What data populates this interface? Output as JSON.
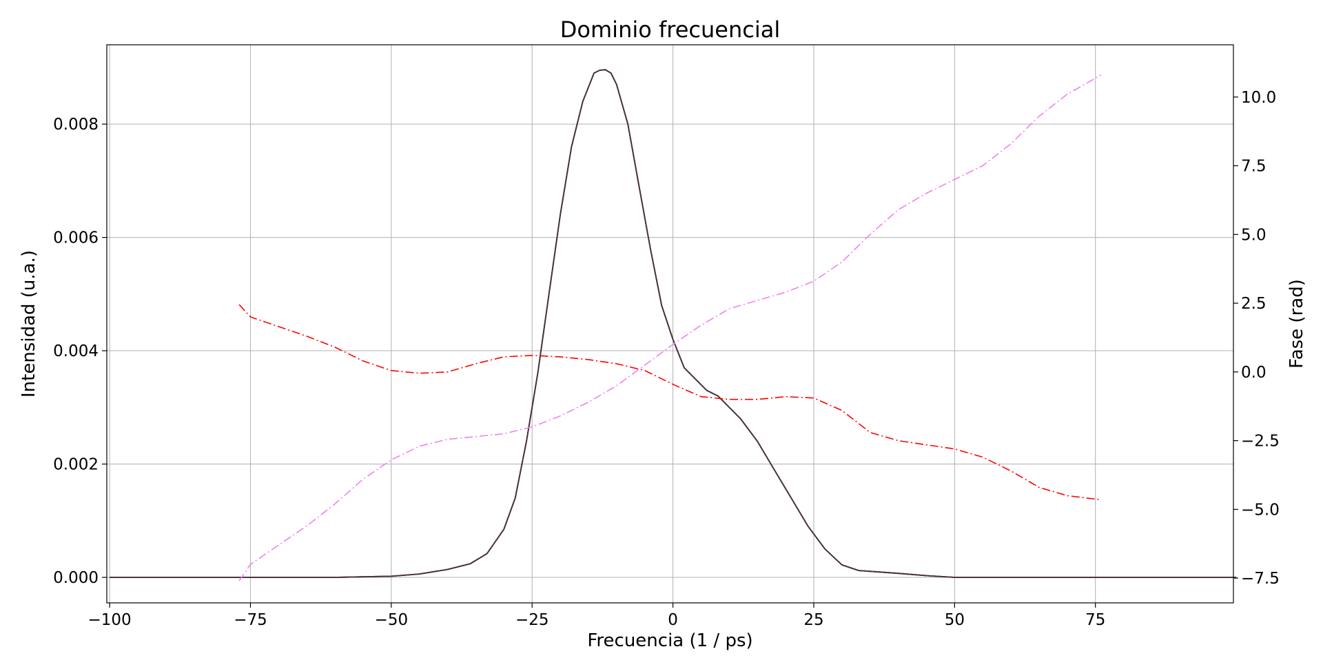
{
  "chart_data": {
    "type": "line",
    "title": "Dominio frecuencial",
    "xlabel": "Frecuencia (1 / ps)",
    "ylabel": "Intensidad (u.a.)",
    "y2label": "Fase (rad)",
    "xlim": [
      -100.5,
      99.5
    ],
    "ylim": [
      -0.00045,
      0.0094
    ],
    "y2lim": [
      -8.4,
      11.9
    ],
    "grid": true,
    "xticks": [
      -100,
      -75,
      -50,
      -25,
      0,
      25,
      50,
      75
    ],
    "xtick_labels": [
      "−100",
      "−75",
      "−50",
      "−25",
      "0",
      "25",
      "50",
      "75"
    ],
    "yticks": [
      0.0,
      0.002,
      0.004,
      0.006,
      0.008
    ],
    "ytick_labels": [
      "0.000",
      "0.002",
      "0.004",
      "0.006",
      "0.008"
    ],
    "y2ticks": [
      -7.5,
      -5.0,
      -2.5,
      0.0,
      2.5,
      5.0,
      7.5,
      10.0
    ],
    "y2tick_labels": [
      "−7.5",
      "−5.0",
      "−2.5",
      "0.0",
      "2.5",
      "5.0",
      "7.5",
      "10.0"
    ],
    "series": [
      {
        "axis": "left",
        "style": "solid",
        "color": "#0000ff",
        "x": [
          -100,
          -60,
          -50,
          -45,
          -40,
          -36,
          -33,
          -30,
          -28,
          -26,
          -24,
          -22,
          -20,
          -18,
          -16,
          -14,
          -13,
          -12,
          -11,
          -10,
          -8,
          -6,
          -4,
          -2,
          0,
          2,
          4,
          6,
          8,
          10,
          12,
          15,
          18,
          21,
          24,
          27,
          30,
          33,
          36,
          40,
          45,
          50,
          60,
          100
        ],
        "values": [
          0.0,
          0.0,
          2e-05,
          6e-05,
          0.00014,
          0.00024,
          0.00042,
          0.00085,
          0.0014,
          0.0024,
          0.0036,
          0.005,
          0.0064,
          0.0076,
          0.0084,
          0.0089,
          0.00895,
          0.00896,
          0.0089,
          0.0087,
          0.008,
          0.0069,
          0.0058,
          0.0048,
          0.0042,
          0.0037,
          0.0035,
          0.0033,
          0.0032,
          0.003,
          0.0028,
          0.0024,
          0.0019,
          0.0014,
          0.0009,
          0.0005,
          0.00022,
          0.00012,
          0.0001,
          7e-05,
          3e-05,
          0.0,
          0.0,
          0.0
        ]
      },
      {
        "axis": "left",
        "style": "solid",
        "color": "#ff0000",
        "x": [
          -100,
          -60,
          -50,
          -45,
          -40,
          -36,
          -33,
          -30,
          -28,
          -26,
          -24,
          -22,
          -20,
          -18,
          -16,
          -14,
          -13,
          -12,
          -11,
          -10,
          -8,
          -6,
          -4,
          -2,
          0,
          2,
          4,
          6,
          8,
          10,
          12,
          15,
          18,
          21,
          24,
          27,
          30,
          33,
          36,
          40,
          45,
          50,
          60,
          100
        ],
        "values": [
          0.0,
          0.0,
          2e-05,
          6e-05,
          0.00014,
          0.00024,
          0.00042,
          0.00085,
          0.0014,
          0.0024,
          0.0036,
          0.005,
          0.0064,
          0.0076,
          0.0084,
          0.0089,
          0.00895,
          0.00896,
          0.0089,
          0.0087,
          0.008,
          0.0069,
          0.0058,
          0.0048,
          0.0042,
          0.0037,
          0.0035,
          0.0033,
          0.0032,
          0.003,
          0.0028,
          0.0024,
          0.0019,
          0.0014,
          0.0009,
          0.0005,
          0.00022,
          0.00012,
          0.0001,
          7e-05,
          3e-05,
          0.0,
          0.0,
          0.0
        ]
      },
      {
        "axis": "left",
        "style": "solid",
        "color": "#3a3a3a",
        "x": [
          -100,
          -60,
          -50,
          -45,
          -40,
          -36,
          -33,
          -30,
          -28,
          -26,
          -24,
          -22,
          -20,
          -18,
          -16,
          -14,
          -13,
          -12,
          -11,
          -10,
          -8,
          -6,
          -4,
          -2,
          0,
          2,
          4,
          6,
          8,
          10,
          12,
          15,
          18,
          21,
          24,
          27,
          30,
          33,
          36,
          40,
          45,
          50,
          60,
          100
        ],
        "values": [
          0.0,
          0.0,
          2e-05,
          6e-05,
          0.00014,
          0.00024,
          0.00042,
          0.00085,
          0.0014,
          0.0024,
          0.0036,
          0.005,
          0.0064,
          0.0076,
          0.0084,
          0.0089,
          0.00895,
          0.00896,
          0.0089,
          0.0087,
          0.008,
          0.0069,
          0.0058,
          0.0048,
          0.0042,
          0.0037,
          0.0035,
          0.0033,
          0.0032,
          0.003,
          0.0028,
          0.0024,
          0.0019,
          0.0014,
          0.0009,
          0.0005,
          0.00022,
          0.00012,
          0.0001,
          7e-05,
          3e-05,
          0.0,
          0.0,
          0.0
        ]
      },
      {
        "axis": "right",
        "style": "dashdot",
        "color": "#ff0000",
        "x": [
          -77,
          -75,
          -70,
          -65,
          -60,
          -55,
          -50,
          -45,
          -40,
          -35,
          -30,
          -25,
          -20,
          -15,
          -10,
          -5,
          0,
          5,
          10,
          15,
          20,
          25,
          30,
          35,
          40,
          45,
          50,
          55,
          60,
          65,
          70,
          76
        ],
        "values": [
          2.45,
          2.0,
          1.65,
          1.3,
          0.9,
          0.4,
          0.05,
          -0.05,
          0.0,
          0.3,
          0.55,
          0.6,
          0.55,
          0.45,
          0.3,
          0.05,
          -0.45,
          -0.9,
          -1.0,
          -1.0,
          -0.9,
          -0.95,
          -1.4,
          -2.2,
          -2.5,
          -2.65,
          -2.8,
          -3.1,
          -3.6,
          -4.2,
          -4.5,
          -4.65
        ]
      },
      {
        "axis": "right",
        "style": "dashdot",
        "color": "#ee82ee",
        "x": [
          -77,
          -75,
          -70,
          -65,
          -60,
          -55,
          -50,
          -45,
          -40,
          -35,
          -30,
          -25,
          -20,
          -15,
          -10,
          -5,
          0,
          5,
          10,
          15,
          20,
          25,
          30,
          35,
          40,
          45,
          50,
          55,
          60,
          65,
          70,
          76
        ],
        "values": [
          -7.6,
          -7.0,
          -6.3,
          -5.6,
          -4.8,
          -3.9,
          -3.2,
          -2.7,
          -2.45,
          -2.35,
          -2.25,
          -2.0,
          -1.6,
          -1.1,
          -0.5,
          0.25,
          1.0,
          1.7,
          2.3,
          2.6,
          2.9,
          3.3,
          4.0,
          5.0,
          5.9,
          6.5,
          7.0,
          7.5,
          8.3,
          9.3,
          10.1,
          10.8
        ]
      }
    ]
  }
}
